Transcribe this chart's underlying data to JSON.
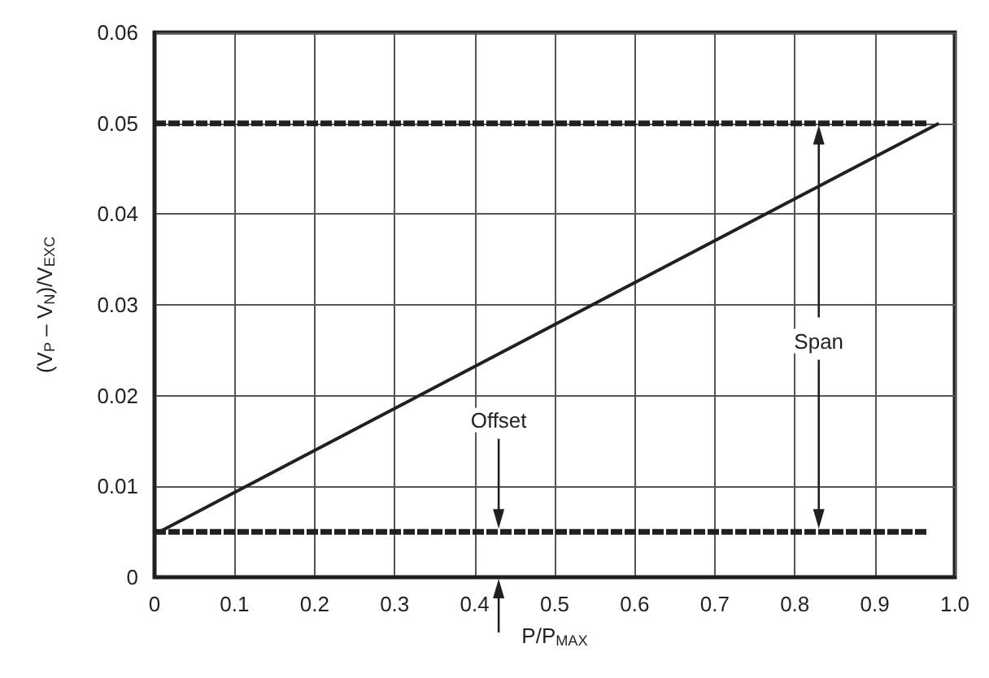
{
  "chart_data": {
    "type": "line",
    "xlabel": "P/P$_{MAX}$",
    "ylabel": "(V$_{P}$ – V$_{N}$)/V$_{EXC}$",
    "series": [
      {
        "color": "#231f20",
        "x": [
          0.006,
          0.98
        ],
        "values": [
          0.005,
          0.05
        ],
        "line_style": "solid"
      },
      {
        "color": "#231f20",
        "x": [
          0,
          0.966
        ],
        "values": [
          0.05,
          0.05
        ],
        "line_style": "dashed"
      },
      {
        "color": "#231f20",
        "x": [
          0,
          0.966
        ],
        "values": [
          0.005,
          0.005
        ],
        "line_style": "dashed"
      }
    ],
    "annotations": [
      "Offset",
      "Span"
    ],
    "xlim": [
      0,
      1
    ],
    "xticks": [
      0,
      0.1,
      0.2,
      0.3,
      0.4,
      0.5,
      0.6,
      0.7,
      0.8,
      0.9,
      {
        "value": 1,
        "label": "1.0"
      }
    ],
    "ylim": [
      0,
      0.06
    ],
    "yticks": [
      0,
      0.01,
      0.02,
      0.03,
      0.04,
      0.05,
      0.06
    ],
    "grid": true,
    "marker": "none"
  }
}
